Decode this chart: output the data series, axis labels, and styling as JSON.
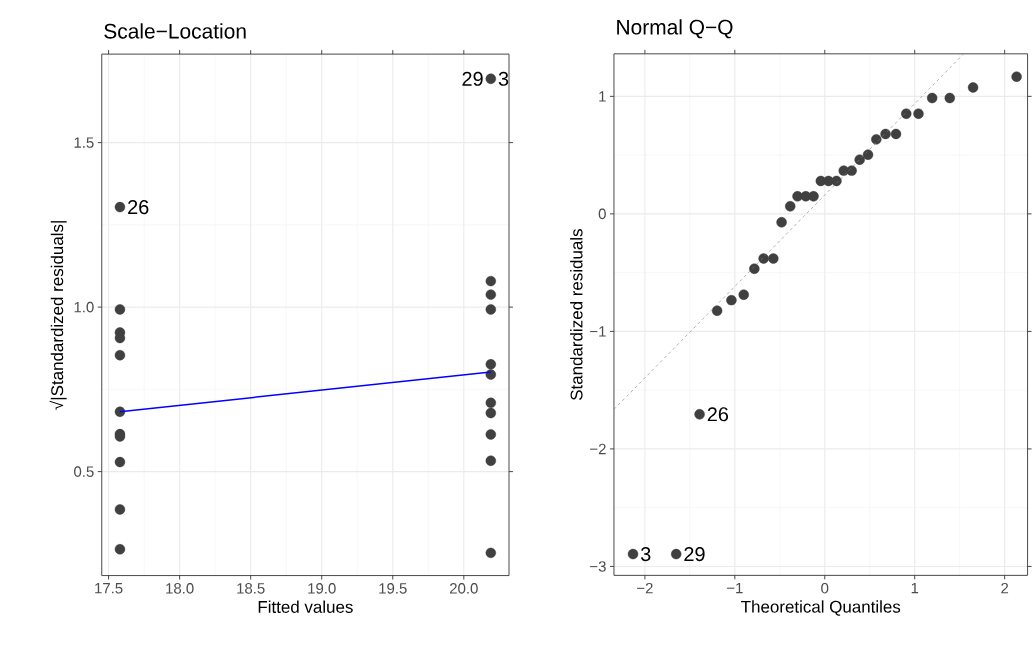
{
  "chart_data": [
    {
      "type": "scatter",
      "title": "Scale−Location",
      "xlabel": "Fitted values",
      "ylabel": "√|Standardized residuals|",
      "marker": "circle",
      "grid": true,
      "xlim": [
        17.452,
        20.318
      ],
      "ylim": [
        0.184,
        1.769
      ],
      "xticks": [
        17.5,
        {
          "value": 18,
          "label": "18.0"
        },
        18.5,
        {
          "value": 19,
          "label": "19.0"
        },
        19.5,
        {
          "value": 20,
          "label": "20.0"
        }
      ],
      "yticks": [
        0.5,
        {
          "value": 1,
          "label": "1.0"
        },
        1.5
      ],
      "series": [
        {
          "color": "#404040",
          "x": [
            17.58,
            17.58,
            17.58,
            17.58,
            17.58,
            17.58,
            17.58,
            17.58,
            17.58,
            17.58,
            17.58,
            20.19,
            20.19,
            20.19,
            20.19,
            20.19,
            20.19,
            20.19,
            20.19,
            20.19,
            20.19,
            20.19
          ],
          "values": [
            1.304,
            0.993,
            0.923,
            0.906,
            0.854,
            0.682,
            0.614,
            0.607,
            0.529,
            0.385,
            0.264,
            1.694,
            1.079,
            1.038,
            0.993,
            0.826,
            0.795,
            0.709,
            0.678,
            0.613,
            0.533,
            0.253
          ]
        },
        {
          "type": "line",
          "color": "#0000ff",
          "marker": "none",
          "x": [
            17.58,
            20.19
          ],
          "values": [
            0.682,
            0.803
          ]
        }
      ],
      "annotations": [
        {
          "text": "26",
          "x": 17.58,
          "y": 1.304
        },
        {
          "text": "29",
          "x": 20.19,
          "y": 1.694
        },
        {
          "text": "3",
          "x": 20.19,
          "y": 1.694
        }
      ]
    },
    {
      "type": "scatter",
      "title": "Normal Q−Q",
      "xlabel": "Theoretical Quantiles",
      "ylabel": "Standardized residuals",
      "marker": "circle",
      "grid": true,
      "xlim": [
        -2.344,
        2.255
      ],
      "ylim": [
        -3.076,
        1.362
      ],
      "xticks": [
        {
          "value": -2,
          "label": "−2"
        },
        {
          "value": -1,
          "label": "−1"
        },
        0,
        1,
        2
      ],
      "yticks": [
        {
          "value": -3,
          "label": "−3"
        },
        {
          "value": -2,
          "label": "−2"
        },
        {
          "value": -1,
          "label": "−1"
        },
        0,
        1
      ],
      "series": [
        {
          "color": "#404040",
          "x": [
            -2.132,
            -1.652,
            -1.392,
            -1.197,
            -1.038,
            -0.901,
            -0.783,
            -0.68,
            -0.572,
            -0.48,
            -0.384,
            -0.303,
            -0.211,
            -0.125,
            -0.044,
            0.041,
            0.13,
            0.211,
            0.299,
            0.388,
            0.481,
            0.573,
            0.676,
            0.792,
            0.906,
            1.042,
            1.194,
            1.39,
            1.649,
            2.133
          ],
          "values": [
            -2.895,
            -2.895,
            -1.705,
            -0.824,
            -0.734,
            -0.688,
            -0.467,
            -0.38,
            -0.38,
            -0.071,
            0.065,
            0.15,
            0.15,
            0.15,
            0.28,
            0.28,
            0.28,
            0.368,
            0.368,
            0.461,
            0.504,
            0.634,
            0.68,
            0.68,
            0.852,
            0.852,
            0.986,
            0.986,
            1.076,
            1.167
          ]
        },
        {
          "type": "line",
          "color": "#808080",
          "marker": "none",
          "line_style": "dashed",
          "x": [
            -2.344,
            1.545
          ],
          "values": [
            -1.663,
            1.362
          ]
        }
      ],
      "annotations": [
        {
          "text": "26",
          "x": -1.392,
          "y": -1.705
        },
        {
          "text": "29",
          "x": -1.652,
          "y": -2.895
        },
        {
          "text": "3",
          "x": -2.132,
          "y": -2.895
        }
      ]
    }
  ]
}
